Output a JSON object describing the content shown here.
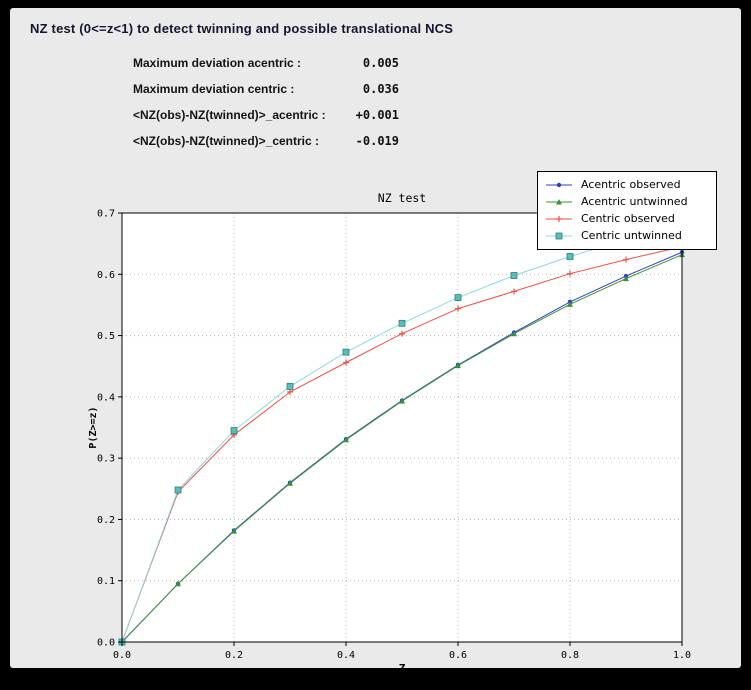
{
  "window": {
    "title": "NZ test (0<=z<1) to detect twinning and possible translational NCS"
  },
  "stats": [
    {
      "label": "Maximum deviation acentric :",
      "value": "0.005"
    },
    {
      "label": "Maximum deviation centric :",
      "value": "0.036"
    },
    {
      "label": "<NZ(obs)-NZ(twinned)>_acentric :",
      "value": "+0.001"
    },
    {
      "label": "<NZ(obs)-NZ(twinned)>_centric :",
      "value": "-0.019"
    }
  ],
  "chart_data": {
    "type": "line",
    "title": "NZ test",
    "xlabel": "Z",
    "ylabel": "P(Z>=z)",
    "xlim": [
      0.0,
      1.0
    ],
    "ylim": [
      0.0,
      0.7
    ],
    "xticks": [
      0.0,
      0.2,
      0.4,
      0.6,
      0.8,
      1.0
    ],
    "yticks": [
      0.0,
      0.1,
      0.2,
      0.3,
      0.4,
      0.5,
      0.6,
      0.7
    ],
    "grid": true,
    "legend_position": "upper right",
    "x": [
      0.0,
      0.1,
      0.2,
      0.3,
      0.4,
      0.5,
      0.6,
      0.7,
      0.8,
      0.9,
      1.0
    ],
    "series": [
      {
        "name": "Acentric observed",
        "color": "#2f3fbf",
        "marker": "circle",
        "values": [
          0.0,
          0.095,
          0.182,
          0.26,
          0.331,
          0.394,
          0.452,
          0.505,
          0.555,
          0.597,
          0.636
        ]
      },
      {
        "name": "Acentric untwinned",
        "color": "#3a913a",
        "marker": "triangle",
        "values": [
          0.0,
          0.095,
          0.181,
          0.259,
          0.33,
          0.393,
          0.451,
          0.503,
          0.551,
          0.593,
          0.632
        ]
      },
      {
        "name": "Centric observed",
        "color": "#ef4f45",
        "marker": "plus",
        "values": [
          0.0,
          0.245,
          0.338,
          0.408,
          0.456,
          0.503,
          0.544,
          0.572,
          0.601,
          0.624,
          0.645
        ]
      },
      {
        "name": "Centric untwinned",
        "color": "#8fd9dd",
        "marker": "square",
        "marker_fill": "#5bbcb8",
        "marker_edge": "#2f7f7f",
        "values": [
          0.0,
          0.248,
          0.345,
          0.417,
          0.473,
          0.52,
          0.562,
          0.598,
          0.629,
          0.657,
          0.683
        ]
      }
    ]
  }
}
